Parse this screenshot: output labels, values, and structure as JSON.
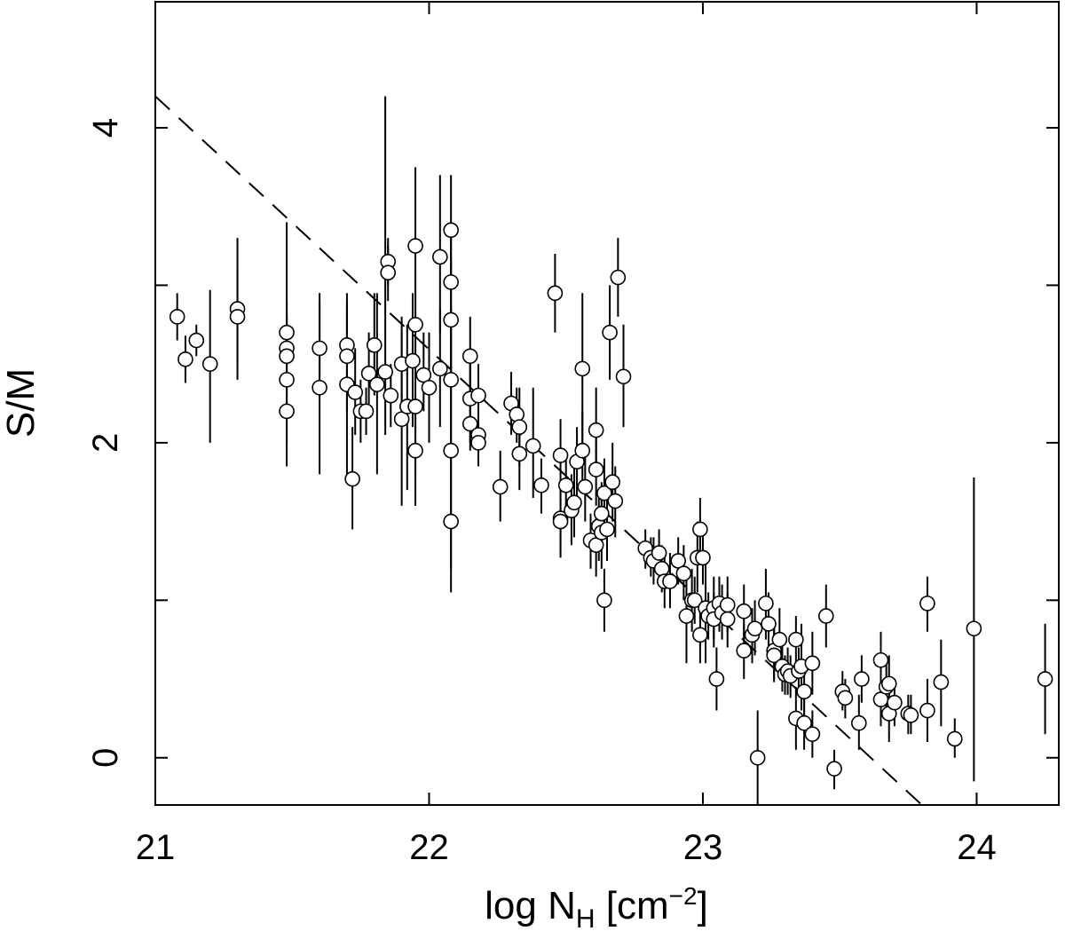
{
  "chart_data": {
    "type": "scatter",
    "title": "",
    "xlabel": {
      "text": "log N",
      "sub": "H",
      "unit_open": " [cm",
      "sup": "−2",
      "unit_close": "]"
    },
    "ylabel": "S/M",
    "xlim": [
      21.0,
      24.3
    ],
    "ylim": [
      -0.3,
      4.8
    ],
    "x_ticks": [
      21,
      22,
      23,
      24
    ],
    "x_tick_labels": [
      "21",
      "22",
      "23",
      "24"
    ],
    "y_ticks": [
      0,
      1,
      2,
      3,
      4
    ],
    "y_tick_labels": [
      "0",
      "",
      "2",
      "",
      "4"
    ],
    "grid": false,
    "legend": "none",
    "fit_line": {
      "style": "dashed",
      "x": [
        21.0,
        23.8
      ],
      "y": [
        4.2,
        -0.3
      ]
    },
    "series": [
      {
        "marker": "open-circle",
        "points": [
          [
            21.08,
            2.8,
            2.65,
            2.95
          ],
          [
            21.11,
            2.53,
            2.38,
            2.68
          ],
          [
            21.15,
            2.65,
            2.55,
            2.75
          ],
          [
            21.2,
            2.5,
            2.0,
            2.97
          ],
          [
            21.3,
            2.85,
            2.4,
            3.3
          ],
          [
            21.3,
            2.8,
            2.5,
            3.1
          ],
          [
            21.48,
            2.7,
            2.5,
            2.9
          ],
          [
            21.48,
            2.6,
            2.4,
            2.8
          ],
          [
            21.48,
            2.55,
            2.3,
            2.8
          ],
          [
            21.48,
            2.4,
            1.85,
            3.4
          ],
          [
            21.48,
            2.2,
            2.0,
            2.4
          ],
          [
            21.6,
            2.6,
            2.3,
            2.9
          ],
          [
            21.6,
            2.35,
            1.8,
            2.95
          ],
          [
            21.7,
            2.62,
            2.4,
            2.85
          ],
          [
            21.7,
            2.55,
            2.2,
            2.9
          ],
          [
            21.7,
            2.37,
            1.8,
            2.95
          ],
          [
            21.72,
            1.77,
            1.45,
            2.1
          ],
          [
            21.73,
            2.32,
            2.05,
            2.6
          ],
          [
            21.75,
            2.2,
            2.0,
            2.4
          ],
          [
            21.77,
            2.2,
            2.05,
            2.35
          ],
          [
            21.78,
            2.44,
            2.2,
            2.7
          ],
          [
            21.8,
            2.62,
            2.3,
            2.95
          ],
          [
            21.81,
            2.37,
            1.8,
            2.95
          ],
          [
            21.84,
            2.45,
            2.05,
            4.2
          ],
          [
            21.85,
            3.15,
            3.0,
            3.3
          ],
          [
            21.85,
            3.08,
            2.9,
            3.25
          ],
          [
            21.86,
            2.3,
            2.1,
            2.5
          ],
          [
            21.9,
            2.5,
            2.2,
            2.8
          ],
          [
            21.9,
            2.15,
            1.6,
            2.7
          ],
          [
            21.92,
            2.23,
            1.7,
            2.75
          ],
          [
            21.94,
            2.52,
            2.1,
            2.95
          ],
          [
            21.95,
            3.25,
            2.8,
            3.75
          ],
          [
            21.95,
            2.75,
            2.4,
            3.1
          ],
          [
            21.95,
            2.23,
            1.8,
            2.65
          ],
          [
            21.95,
            1.95,
            1.6,
            2.3
          ],
          [
            21.98,
            2.43,
            2.2,
            2.7
          ],
          [
            22.0,
            2.35,
            2.0,
            2.7
          ],
          [
            22.04,
            3.18,
            2.7,
            3.7
          ],
          [
            22.04,
            2.47,
            2.1,
            2.85
          ],
          [
            22.08,
            3.35,
            3.0,
            3.7
          ],
          [
            22.08,
            3.02,
            2.7,
            3.35
          ],
          [
            22.08,
            2.78,
            2.4,
            3.15
          ],
          [
            22.08,
            2.4,
            2.0,
            2.85
          ],
          [
            22.08,
            1.95,
            1.2,
            2.7
          ],
          [
            22.08,
            1.5,
            1.05,
            2.0
          ],
          [
            22.15,
            2.55,
            2.3,
            2.8
          ],
          [
            22.15,
            2.28,
            2.0,
            2.55
          ],
          [
            22.15,
            2.12,
            1.95,
            2.3
          ],
          [
            22.18,
            2.3,
            2.1,
            2.5
          ],
          [
            22.18,
            2.05,
            1.9,
            2.2
          ],
          [
            22.18,
            2.0,
            1.85,
            2.15
          ],
          [
            22.26,
            1.72,
            1.5,
            1.95
          ],
          [
            22.3,
            2.25,
            2.05,
            2.45
          ],
          [
            22.32,
            2.18,
            2.0,
            2.35
          ],
          [
            22.33,
            2.1,
            1.85,
            2.35
          ],
          [
            22.33,
            1.93,
            1.7,
            2.15
          ],
          [
            22.38,
            1.98,
            1.65,
            2.35
          ],
          [
            22.41,
            1.73,
            1.55,
            1.9
          ],
          [
            22.46,
            2.95,
            2.7,
            3.2
          ],
          [
            22.48,
            1.92,
            1.7,
            2.15
          ],
          [
            22.48,
            1.52,
            1.3,
            1.75
          ],
          [
            22.48,
            1.5,
            1.27,
            1.75
          ],
          [
            22.5,
            1.73,
            1.5,
            1.95
          ],
          [
            22.52,
            1.57,
            1.35,
            1.8
          ],
          [
            22.53,
            1.62,
            1.4,
            1.85
          ],
          [
            22.54,
            1.88,
            1.65,
            2.1
          ],
          [
            22.56,
            2.47,
            2.0,
            2.95
          ],
          [
            22.56,
            1.95,
            1.7,
            2.2
          ],
          [
            22.57,
            1.72,
            1.5,
            1.95
          ],
          [
            22.59,
            1.38,
            1.2,
            1.55
          ],
          [
            22.61,
            1.83,
            1.6,
            2.05
          ],
          [
            22.61,
            2.08,
            1.8,
            2.35
          ],
          [
            22.61,
            1.35,
            1.15,
            1.55
          ],
          [
            22.62,
            1.47,
            1.25,
            1.7
          ],
          [
            22.63,
            1.55,
            1.35,
            1.75
          ],
          [
            22.63,
            1.43,
            1.2,
            1.65
          ],
          [
            22.64,
            1.68,
            1.45,
            1.9
          ],
          [
            22.64,
            1.0,
            0.8,
            1.2
          ],
          [
            22.65,
            1.45,
            1.25,
            1.65
          ],
          [
            22.66,
            2.7,
            2.4,
            3.0
          ],
          [
            22.67,
            1.75,
            1.5,
            2.0
          ],
          [
            22.68,
            1.63,
            1.4,
            1.85
          ],
          [
            22.69,
            3.05,
            2.8,
            3.3
          ],
          [
            22.71,
            2.42,
            2.1,
            2.75
          ],
          [
            22.79,
            1.33,
            1.2,
            1.45
          ],
          [
            22.81,
            1.27,
            1.15,
            1.4
          ],
          [
            22.82,
            1.25,
            1.1,
            1.4
          ],
          [
            22.84,
            1.3,
            1.15,
            1.45
          ],
          [
            22.85,
            1.2,
            1.05,
            1.35
          ],
          [
            22.86,
            1.12,
            0.95,
            1.3
          ],
          [
            22.88,
            1.12,
            0.95,
            1.3
          ],
          [
            22.91,
            1.25,
            1.1,
            1.4
          ],
          [
            22.93,
            1.17,
            1.0,
            1.35
          ],
          [
            22.94,
            0.9,
            0.6,
            1.2
          ],
          [
            22.96,
            1.0,
            0.8,
            1.2
          ],
          [
            22.97,
            1.0,
            0.85,
            1.15
          ],
          [
            22.98,
            1.27,
            1.05,
            1.5
          ],
          [
            22.99,
            1.45,
            1.25,
            1.65
          ],
          [
            22.99,
            0.78,
            0.6,
            0.95
          ],
          [
            23.0,
            1.27,
            1.1,
            1.45
          ],
          [
            23.01,
            0.95,
            0.6,
            1.3
          ],
          [
            23.02,
            0.9,
            0.75,
            1.05
          ],
          [
            23.04,
            0.95,
            0.75,
            1.15
          ],
          [
            23.04,
            0.88,
            0.7,
            1.05
          ],
          [
            23.05,
            0.5,
            0.3,
            0.7
          ],
          [
            23.06,
            0.98,
            0.8,
            1.15
          ],
          [
            23.07,
            0.92,
            0.75,
            1.1
          ],
          [
            23.09,
            0.97,
            0.8,
            1.15
          ],
          [
            23.09,
            0.88,
            0.7,
            1.05
          ],
          [
            23.15,
            0.93,
            0.75,
            1.1
          ],
          [
            23.15,
            0.68,
            0.5,
            0.85
          ],
          [
            23.18,
            0.78,
            0.6,
            0.95
          ],
          [
            23.19,
            0.82,
            0.65,
            1.0
          ],
          [
            23.2,
            0.0,
            -0.3,
            0.3
          ],
          [
            23.23,
            0.98,
            0.75,
            1.2
          ],
          [
            23.24,
            0.85,
            0.65,
            1.05
          ],
          [
            23.26,
            0.68,
            0.5,
            0.85
          ],
          [
            23.26,
            0.65,
            0.48,
            0.82
          ],
          [
            23.28,
            0.75,
            0.55,
            0.95
          ],
          [
            23.29,
            0.58,
            0.42,
            0.75
          ],
          [
            23.3,
            0.53,
            0.4,
            0.65
          ],
          [
            23.31,
            0.55,
            0.4,
            0.7
          ],
          [
            23.32,
            0.52,
            0.38,
            0.65
          ],
          [
            23.34,
            0.75,
            0.6,
            0.9
          ],
          [
            23.34,
            0.25,
            0.05,
            0.45
          ],
          [
            23.35,
            0.55,
            0.4,
            0.7
          ],
          [
            23.36,
            0.58,
            0.3,
            0.85
          ],
          [
            23.37,
            0.22,
            0.05,
            0.4
          ],
          [
            23.37,
            0.42,
            0.25,
            0.6
          ],
          [
            23.4,
            0.15,
            0.0,
            0.3
          ],
          [
            23.4,
            0.6,
            0.4,
            0.8
          ],
          [
            23.45,
            0.9,
            0.7,
            1.1
          ],
          [
            23.48,
            -0.07,
            -0.2,
            0.05
          ],
          [
            23.51,
            0.42,
            0.3,
            0.55
          ],
          [
            23.52,
            0.38,
            0.25,
            0.5
          ],
          [
            23.57,
            0.22,
            0.05,
            0.4
          ],
          [
            23.58,
            0.5,
            0.35,
            0.65
          ],
          [
            23.65,
            0.62,
            0.45,
            0.8
          ],
          [
            23.65,
            0.37,
            0.2,
            0.55
          ],
          [
            23.67,
            0.45,
            0.3,
            0.6
          ],
          [
            23.68,
            0.47,
            0.3,
            0.65
          ],
          [
            23.68,
            0.28,
            0.1,
            0.45
          ],
          [
            23.7,
            0.35,
            0.2,
            0.5
          ],
          [
            23.75,
            0.28,
            0.15,
            0.4
          ],
          [
            23.76,
            0.27,
            0.15,
            0.4
          ],
          [
            23.82,
            0.98,
            0.8,
            1.15
          ],
          [
            23.82,
            0.3,
            0.1,
            0.5
          ],
          [
            23.87,
            0.48,
            0.2,
            0.75
          ],
          [
            23.92,
            0.12,
            0.0,
            0.25
          ],
          [
            23.99,
            0.82,
            -0.15,
            1.78
          ],
          [
            24.25,
            0.5,
            0.15,
            0.85
          ]
        ]
      }
    ]
  }
}
